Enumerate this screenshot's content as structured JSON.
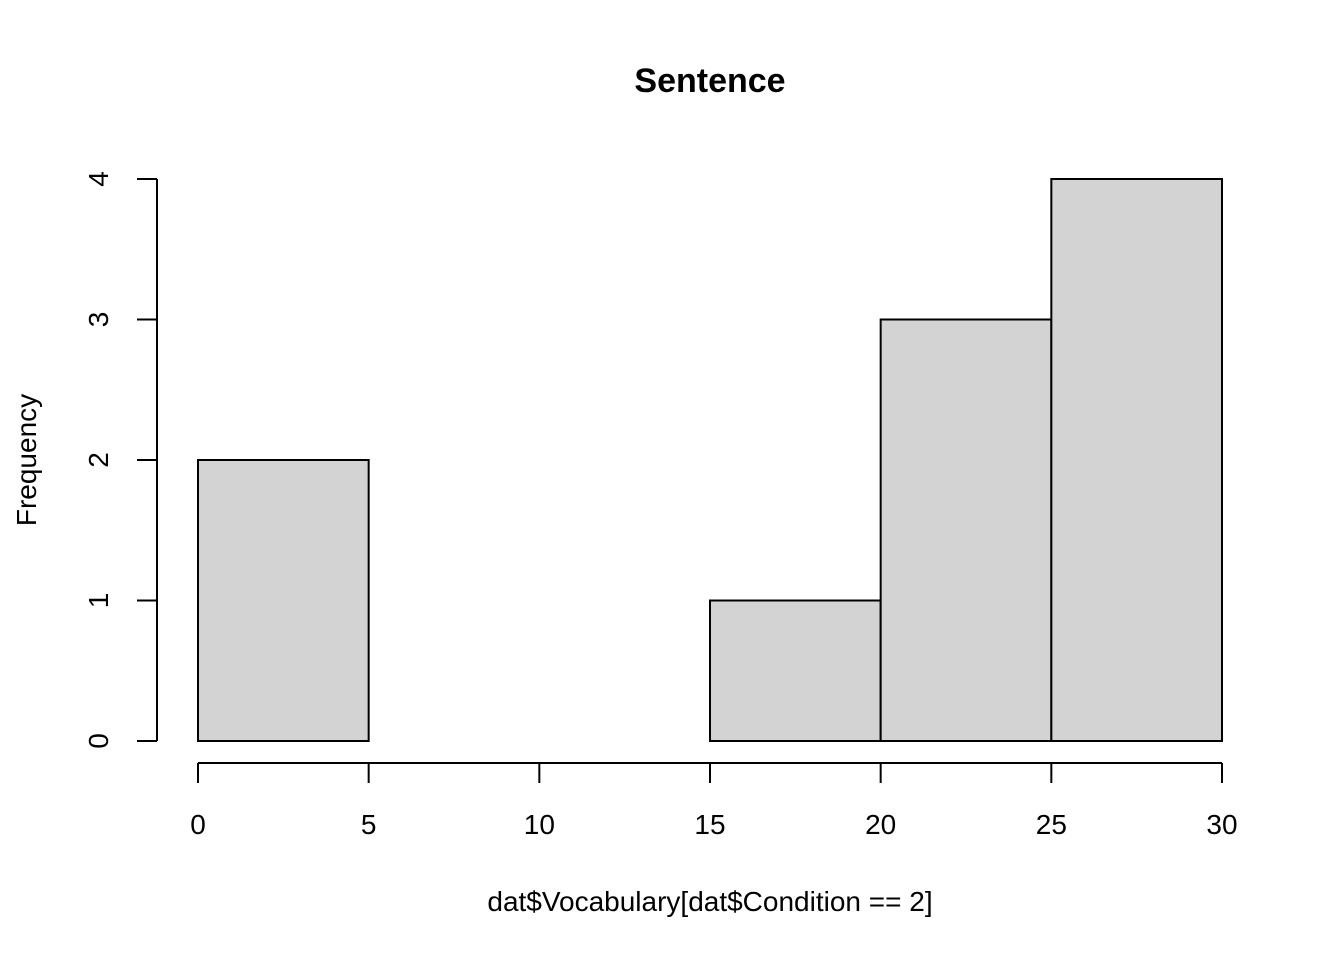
{
  "chart_data": {
    "type": "bar",
    "title": "Sentence",
    "xlabel": "dat$Vocabulary[dat$Condition == 2]",
    "ylabel": "Frequency",
    "bins": [
      {
        "from": 0,
        "to": 5,
        "count": 2
      },
      {
        "from": 5,
        "to": 10,
        "count": 0
      },
      {
        "from": 10,
        "to": 15,
        "count": 0
      },
      {
        "from": 15,
        "to": 20,
        "count": 1
      },
      {
        "from": 20,
        "to": 25,
        "count": 3
      },
      {
        "from": 25,
        "to": 30,
        "count": 4
      }
    ],
    "xlim": [
      0,
      30
    ],
    "ylim": [
      0,
      4
    ],
    "xticks": [
      "0",
      "5",
      "10",
      "15",
      "20",
      "25",
      "30"
    ],
    "yticks": [
      "0",
      "1",
      "2",
      "3",
      "4"
    ],
    "bar_color": "#d3d3d3",
    "grid": false,
    "legend": "none"
  }
}
